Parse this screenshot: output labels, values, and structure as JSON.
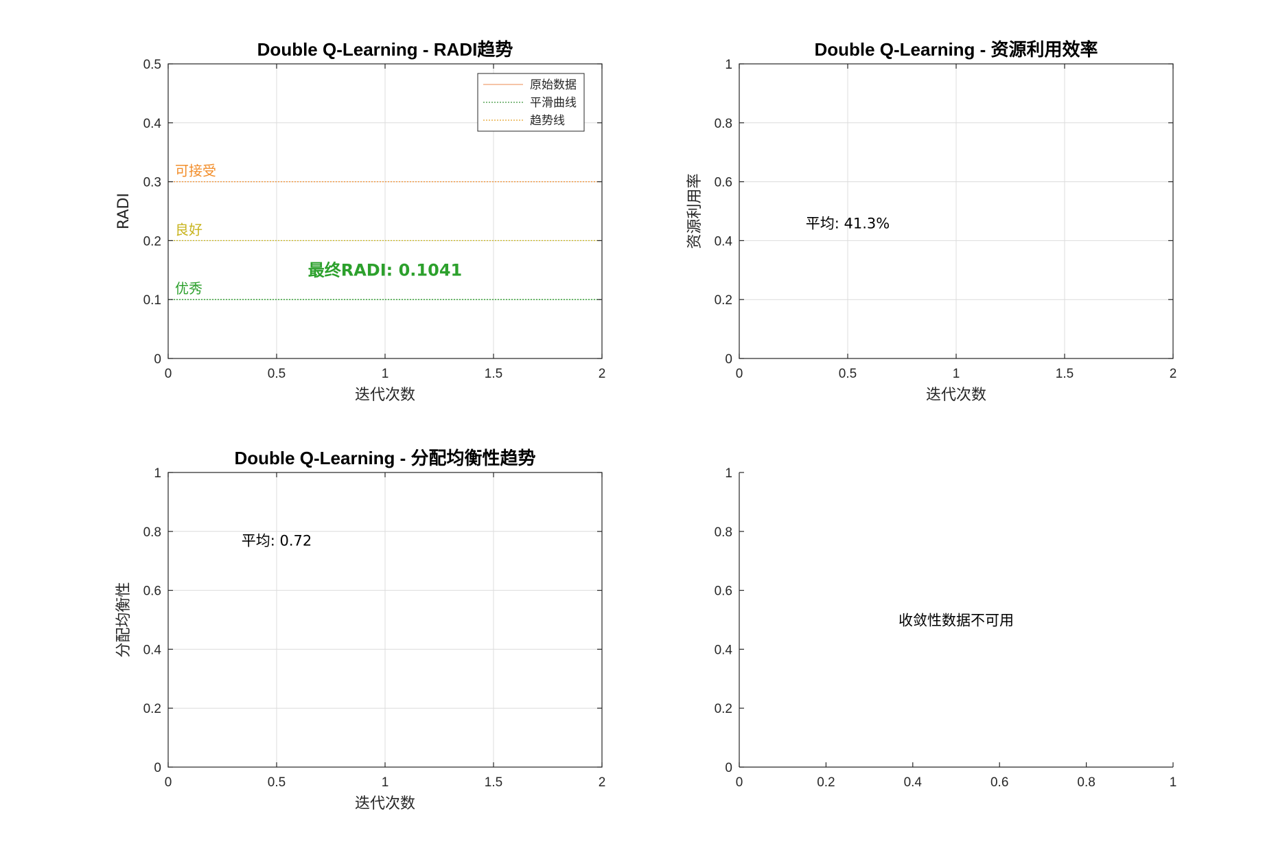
{
  "chart_data": [
    {
      "type": "line",
      "title": "Double Q-Learning - RADI趋势",
      "xlabel": "迭代次数",
      "ylabel": "RADI",
      "xlim": [
        0,
        2
      ],
      "ylim": [
        0,
        0.5
      ],
      "xticks": [
        "0",
        "0.5",
        "1",
        "1.5",
        "2"
      ],
      "yticks": [
        "0",
        "0.1",
        "0.2",
        "0.3",
        "0.4",
        "0.5"
      ],
      "grid": true,
      "legend": {
        "location": "top-right",
        "entries": [
          {
            "name": "原始数据",
            "color": "#f4b08a"
          },
          {
            "name": "平滑曲线",
            "color": "#5aa65a"
          },
          {
            "name": "趋势线",
            "color": "#e8b04a"
          }
        ]
      },
      "reference_lines": [
        {
          "label": "可接受",
          "y": 0.3,
          "color": "#f28e2b"
        },
        {
          "label": "良好",
          "y": 0.2,
          "color": "#c8b41e"
        },
        {
          "label": "优秀",
          "y": 0.1,
          "color": "#2ca02c"
        }
      ],
      "annotation": {
        "text": "最终RADI: 0.1041",
        "x": 1.0,
        "y": 0.15,
        "color": "#2ca02c",
        "bold": true
      },
      "series": []
    },
    {
      "type": "line",
      "title": "Double Q-Learning - 资源利用效率",
      "xlabel": "迭代次数",
      "ylabel": "资源利用率",
      "xlim": [
        0,
        2
      ],
      "ylim": [
        0,
        1
      ],
      "xticks": [
        "0",
        "0.5",
        "1",
        "1.5",
        "2"
      ],
      "yticks": [
        "0",
        "0.2",
        "0.4",
        "0.6",
        "0.8",
        "1"
      ],
      "grid": true,
      "annotation": {
        "text": "平均: 41.3%",
        "x": 0.5,
        "y": 0.46,
        "color": "#000000",
        "bold": false
      },
      "series": []
    },
    {
      "type": "line",
      "title": "Double Q-Learning - 分配均衡性趋势",
      "xlabel": "迭代次数",
      "ylabel": "分配均衡性",
      "xlim": [
        0,
        2
      ],
      "ylim": [
        0,
        1
      ],
      "xticks": [
        "0",
        "0.5",
        "1",
        "1.5",
        "2"
      ],
      "yticks": [
        "0",
        "0.2",
        "0.4",
        "0.6",
        "0.8",
        "1"
      ],
      "grid": true,
      "annotation": {
        "text": "平均: 0.72",
        "x": 0.5,
        "y": 0.77,
        "color": "#000000",
        "bold": false
      },
      "series": []
    },
    {
      "type": "line",
      "title": "",
      "xlabel": "",
      "ylabel": "",
      "xlim": [
        0,
        1
      ],
      "ylim": [
        0,
        1
      ],
      "xticks": [
        "0",
        "0.2",
        "0.4",
        "0.6",
        "0.8",
        "1"
      ],
      "yticks": [
        "0",
        "0.2",
        "0.4",
        "0.6",
        "0.8",
        "1"
      ],
      "grid": false,
      "box": false,
      "annotation": {
        "text": "收敛性数据不可用",
        "x": 0.5,
        "y": 0.5,
        "color": "#000000",
        "bold": false
      },
      "series": []
    }
  ]
}
